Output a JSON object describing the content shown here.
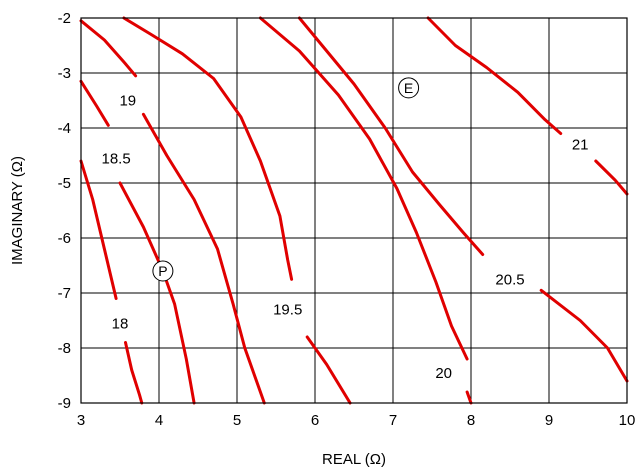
{
  "chart_data": {
    "type": "line",
    "xlabel": "REAL (Ω)",
    "ylabel": "IMAGINARY (Ω)",
    "xlim": [
      3,
      10
    ],
    "ylim": [
      -9,
      -2
    ],
    "x_ticks": [
      "3",
      "4",
      "5",
      "6",
      "7",
      "8",
      "9",
      "10"
    ],
    "y_ticks": [
      "-2",
      "-3",
      "-4",
      "-5",
      "-6",
      "-7",
      "-8",
      "-9"
    ],
    "grid": true,
    "contour_color": "#e00000",
    "series": [
      {
        "name": "18",
        "label_at": [
          3.5,
          -7.55
        ],
        "segments": [
          [
            [
              3.0,
              -4.6
            ],
            [
              3.15,
              -5.3
            ],
            [
              3.3,
              -6.2
            ],
            [
              3.4,
              -6.8
            ],
            [
              3.45,
              -7.1
            ]
          ],
          [
            [
              3.57,
              -7.9
            ],
            [
              3.65,
              -8.4
            ],
            [
              3.75,
              -8.85
            ],
            [
              3.78,
              -9.0
            ]
          ]
        ]
      },
      {
        "name": "18.5",
        "label_at": [
          3.45,
          -4.55
        ],
        "segments": [
          [
            [
              3.0,
              -3.15
            ],
            [
              3.2,
              -3.6
            ],
            [
              3.35,
              -3.95
            ]
          ],
          [
            [
              3.5,
              -5.0
            ],
            [
              3.8,
              -5.8
            ],
            [
              4.05,
              -6.6
            ],
            [
              4.2,
              -7.2
            ],
            [
              4.35,
              -8.2
            ],
            [
              4.45,
              -9.0
            ]
          ]
        ]
      },
      {
        "name": "19",
        "label_at": [
          3.6,
          -3.5
        ],
        "segments": [
          [
            [
              3.0,
              -2.05
            ],
            [
              3.3,
              -2.4
            ],
            [
              3.55,
              -2.8
            ],
            [
              3.7,
              -3.05
            ]
          ],
          [
            [
              3.8,
              -3.75
            ],
            [
              4.1,
              -4.5
            ],
            [
              4.45,
              -5.3
            ],
            [
              4.75,
              -6.2
            ],
            [
              4.95,
              -7.2
            ],
            [
              5.1,
              -8.0
            ],
            [
              5.35,
              -9.0
            ]
          ]
        ]
      },
      {
        "name": "19.5",
        "label_at": [
          5.65,
          -7.3
        ],
        "segments": [
          [
            [
              3.55,
              -2.0
            ],
            [
              3.9,
              -2.3
            ],
            [
              4.3,
              -2.65
            ],
            [
              4.7,
              -3.1
            ],
            [
              5.05,
              -3.8
            ],
            [
              5.3,
              -4.6
            ],
            [
              5.55,
              -5.6
            ],
            [
              5.65,
              -6.4
            ],
            [
              5.7,
              -6.75
            ]
          ],
          [
            [
              5.9,
              -7.8
            ],
            [
              6.15,
              -8.3
            ],
            [
              6.45,
              -9.0
            ]
          ]
        ]
      },
      {
        "name": "20",
        "label_at": [
          7.65,
          -8.45
        ],
        "segments": [
          [
            [
              5.3,
              -2.0
            ],
            [
              5.8,
              -2.6
            ],
            [
              6.3,
              -3.4
            ],
            [
              6.7,
              -4.2
            ],
            [
              7.05,
              -5.1
            ],
            [
              7.3,
              -5.9
            ],
            [
              7.55,
              -6.8
            ],
            [
              7.75,
              -7.6
            ],
            [
              7.95,
              -8.2
            ]
          ],
          [
            [
              7.95,
              -8.8
            ],
            [
              8.0,
              -9.0
            ]
          ]
        ]
      },
      {
        "name": "20.5",
        "label_at": [
          8.5,
          -6.75
        ],
        "segments": [
          [
            [
              5.8,
              -2.0
            ],
            [
              6.5,
              -3.2
            ],
            [
              6.9,
              -4.0
            ],
            [
              7.25,
              -4.8
            ],
            [
              7.6,
              -5.4
            ],
            [
              7.9,
              -5.9
            ],
            [
              8.15,
              -6.3
            ]
          ],
          [
            [
              8.9,
              -6.95
            ],
            [
              9.4,
              -7.5
            ],
            [
              9.75,
              -8.0
            ],
            [
              10.0,
              -8.6
            ]
          ]
        ]
      },
      {
        "name": "21",
        "label_at": [
          9.4,
          -4.3
        ],
        "segments": [
          [
            [
              7.45,
              -2.0
            ],
            [
              7.8,
              -2.5
            ],
            [
              8.2,
              -2.9
            ],
            [
              8.6,
              -3.35
            ],
            [
              8.95,
              -3.85
            ],
            [
              9.15,
              -4.1
            ]
          ],
          [
            [
              9.6,
              -4.6
            ],
            [
              9.85,
              -4.95
            ],
            [
              10.0,
              -5.2
            ]
          ]
        ]
      }
    ],
    "markers": [
      {
        "label": "E",
        "x": 7.2,
        "y": -3.27
      },
      {
        "label": "P",
        "x": 4.05,
        "y": -6.6
      }
    ]
  }
}
